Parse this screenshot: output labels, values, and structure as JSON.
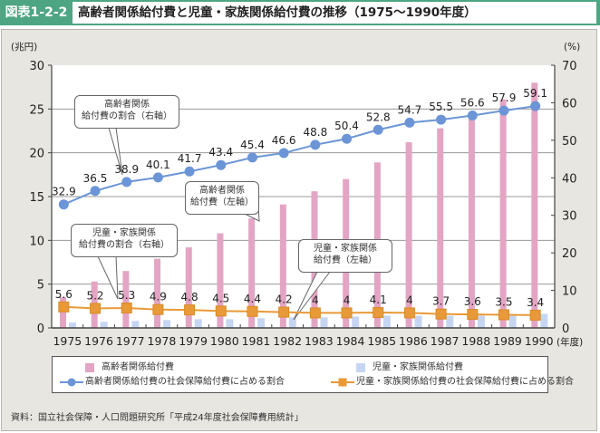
{
  "header": {
    "figure_label": "図表1-2-2",
    "title": "高齢者関係給付費と児童・家族関係給付費の推移（1975〜1990年度）"
  },
  "colors": {
    "header_green": "#4ea584",
    "elderly_bar": "#e3a5c3",
    "child_bar": "#c6d6f2",
    "elderly_line": "#6b95d6",
    "child_line": "#e99a38",
    "panel_bg": "#e8e6e0"
  },
  "chart_data": {
    "type": "bar+line",
    "title": "高齢者関係給付費と児童・家族関係給付費の推移（1975〜1990年度）",
    "categories": [
      "1975",
      "1976",
      "1977",
      "1978",
      "1979",
      "1980",
      "1981",
      "1982",
      "1983",
      "1984",
      "1985",
      "1986",
      "1987",
      "1988",
      "1989",
      "1990"
    ],
    "x_unit_label": "(年度)",
    "left_axis": {
      "label": "(兆円)",
      "ylim": [
        0,
        30
      ],
      "ticks": [
        "0",
        "5",
        "10",
        "15",
        "20",
        "25",
        "30"
      ]
    },
    "right_axis": {
      "label": "(%)",
      "ylim": [
        0,
        70
      ],
      "ticks": [
        "0",
        "10",
        "20",
        "30",
        "40",
        "50",
        "60",
        "70"
      ]
    },
    "grid": true,
    "series": [
      {
        "name": "高齢者関係給付費",
        "type": "bar",
        "axis": "left",
        "values": [
          3.5,
          5.3,
          6.5,
          7.9,
          9.2,
          10.8,
          12.5,
          14.1,
          15.6,
          17.0,
          18.9,
          21.2,
          22.8,
          24.2,
          26.1,
          28.0
        ]
      },
      {
        "name": "児童・家族関係給付費",
        "type": "bar",
        "axis": "left",
        "values": [
          0.6,
          0.7,
          0.8,
          0.9,
          1.0,
          1.0,
          1.1,
          1.2,
          1.2,
          1.3,
          1.4,
          1.4,
          1.4,
          1.4,
          1.5,
          1.6
        ]
      },
      {
        "name": "高齢者関係給付費の社会保障給付費に占める割合",
        "type": "line",
        "marker": "circle",
        "axis": "right",
        "values": [
          32.9,
          36.5,
          38.9,
          40.1,
          41.7,
          43.4,
          45.4,
          46.6,
          48.8,
          50.4,
          52.8,
          54.7,
          55.5,
          56.6,
          57.9,
          59.1
        ],
        "labels": [
          "32.9",
          "36.5",
          "38.9",
          "40.1",
          "41.7",
          "43.4",
          "45.4",
          "46.6",
          "48.8",
          "50.4",
          "52.8",
          "54.7",
          "55.5",
          "56.6",
          "57.9",
          "59.1"
        ]
      },
      {
        "name": "児童・家族関係給付費の社会保障給付費に占める割合",
        "type": "line",
        "marker": "square",
        "axis": "right",
        "values": [
          5.6,
          5.2,
          5.3,
          4.9,
          4.8,
          4.5,
          4.4,
          4.2,
          4.0,
          4.0,
          4.1,
          4.0,
          3.7,
          3.6,
          3.5,
          3.4
        ],
        "labels": [
          "5.6",
          "5.2",
          "5.3",
          "4.9",
          "4.8",
          "4.5",
          "4.4",
          "4.2",
          "4",
          "4",
          "4.1",
          "4",
          "3.7",
          "3.6",
          "3.5",
          "3.4"
        ]
      }
    ],
    "annotations": [
      {
        "line1": "高齢者関係",
        "line2": "給付費の割合（右軸）"
      },
      {
        "line1": "高齢者関係",
        "line2": "給付費（左軸）"
      },
      {
        "line1": "児童・家族関係",
        "line2": "給付費の割合（右軸）"
      },
      {
        "line1": "児童・家族関係",
        "line2": "給付費（左軸）"
      }
    ],
    "legend_position": "bottom"
  },
  "legend": {
    "items": [
      "高齢者関係給付費",
      "児童・家族関係給付費",
      "高齢者関係給付費の社会保障給付費に占める割合",
      "児童・家族関係給付費の社会保障給付費に占める割合"
    ]
  },
  "source": "資料：国立社会保障・人口問題研究所「平成24年度社会保障費用統計」"
}
